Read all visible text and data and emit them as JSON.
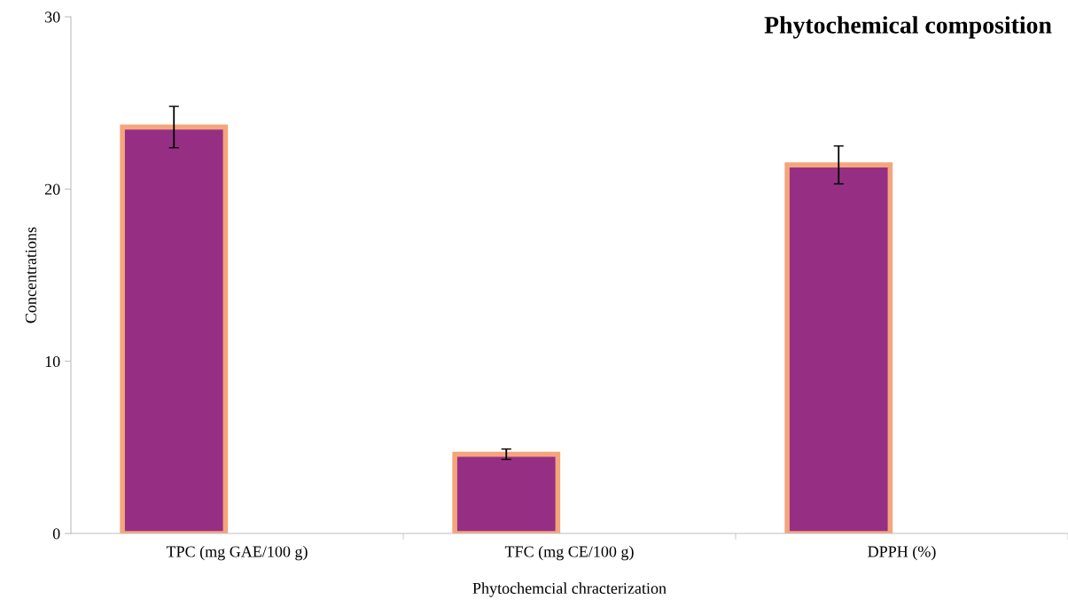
{
  "chart_data": {
    "type": "bar",
    "title": "Phytochemical composition",
    "xlabel": "Phytochemcial chracterization",
    "ylabel": "Concentrations",
    "categories": [
      "TPC (mg GAE/100 g)",
      "TFC (mg CE/100 g)",
      "DPPH (%)"
    ],
    "values": [
      23.6,
      4.6,
      21.4
    ],
    "errors": [
      1.2,
      0.3,
      1.1
    ],
    "color": "#962f84",
    "ylim": [
      0,
      30
    ],
    "yticks": [
      0,
      10,
      20,
      30
    ],
    "grid": false,
    "legend": false
  }
}
